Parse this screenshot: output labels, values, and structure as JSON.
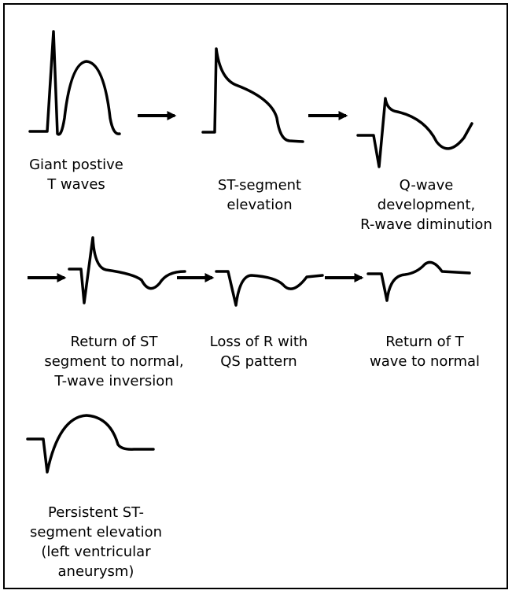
{
  "stages": [
    {
      "label": [
        "Giant postive",
        "T waves"
      ]
    },
    {
      "label": [
        "ST-segment",
        "elevation"
      ]
    },
    {
      "label": [
        "Q-wave",
        "development,",
        "R-wave diminution"
      ]
    },
    {
      "label": [
        "Return of ST",
        "segment to normal,",
        "T-wave inversion"
      ]
    },
    {
      "label": [
        "Loss of R with",
        "QS pattern"
      ]
    },
    {
      "label": [
        "Return of T",
        "wave to normal"
      ]
    },
    {
      "label": [
        "Persistent ST-",
        "segment elevation",
        "(left ventricular",
        "aneurysm)"
      ]
    }
  ]
}
